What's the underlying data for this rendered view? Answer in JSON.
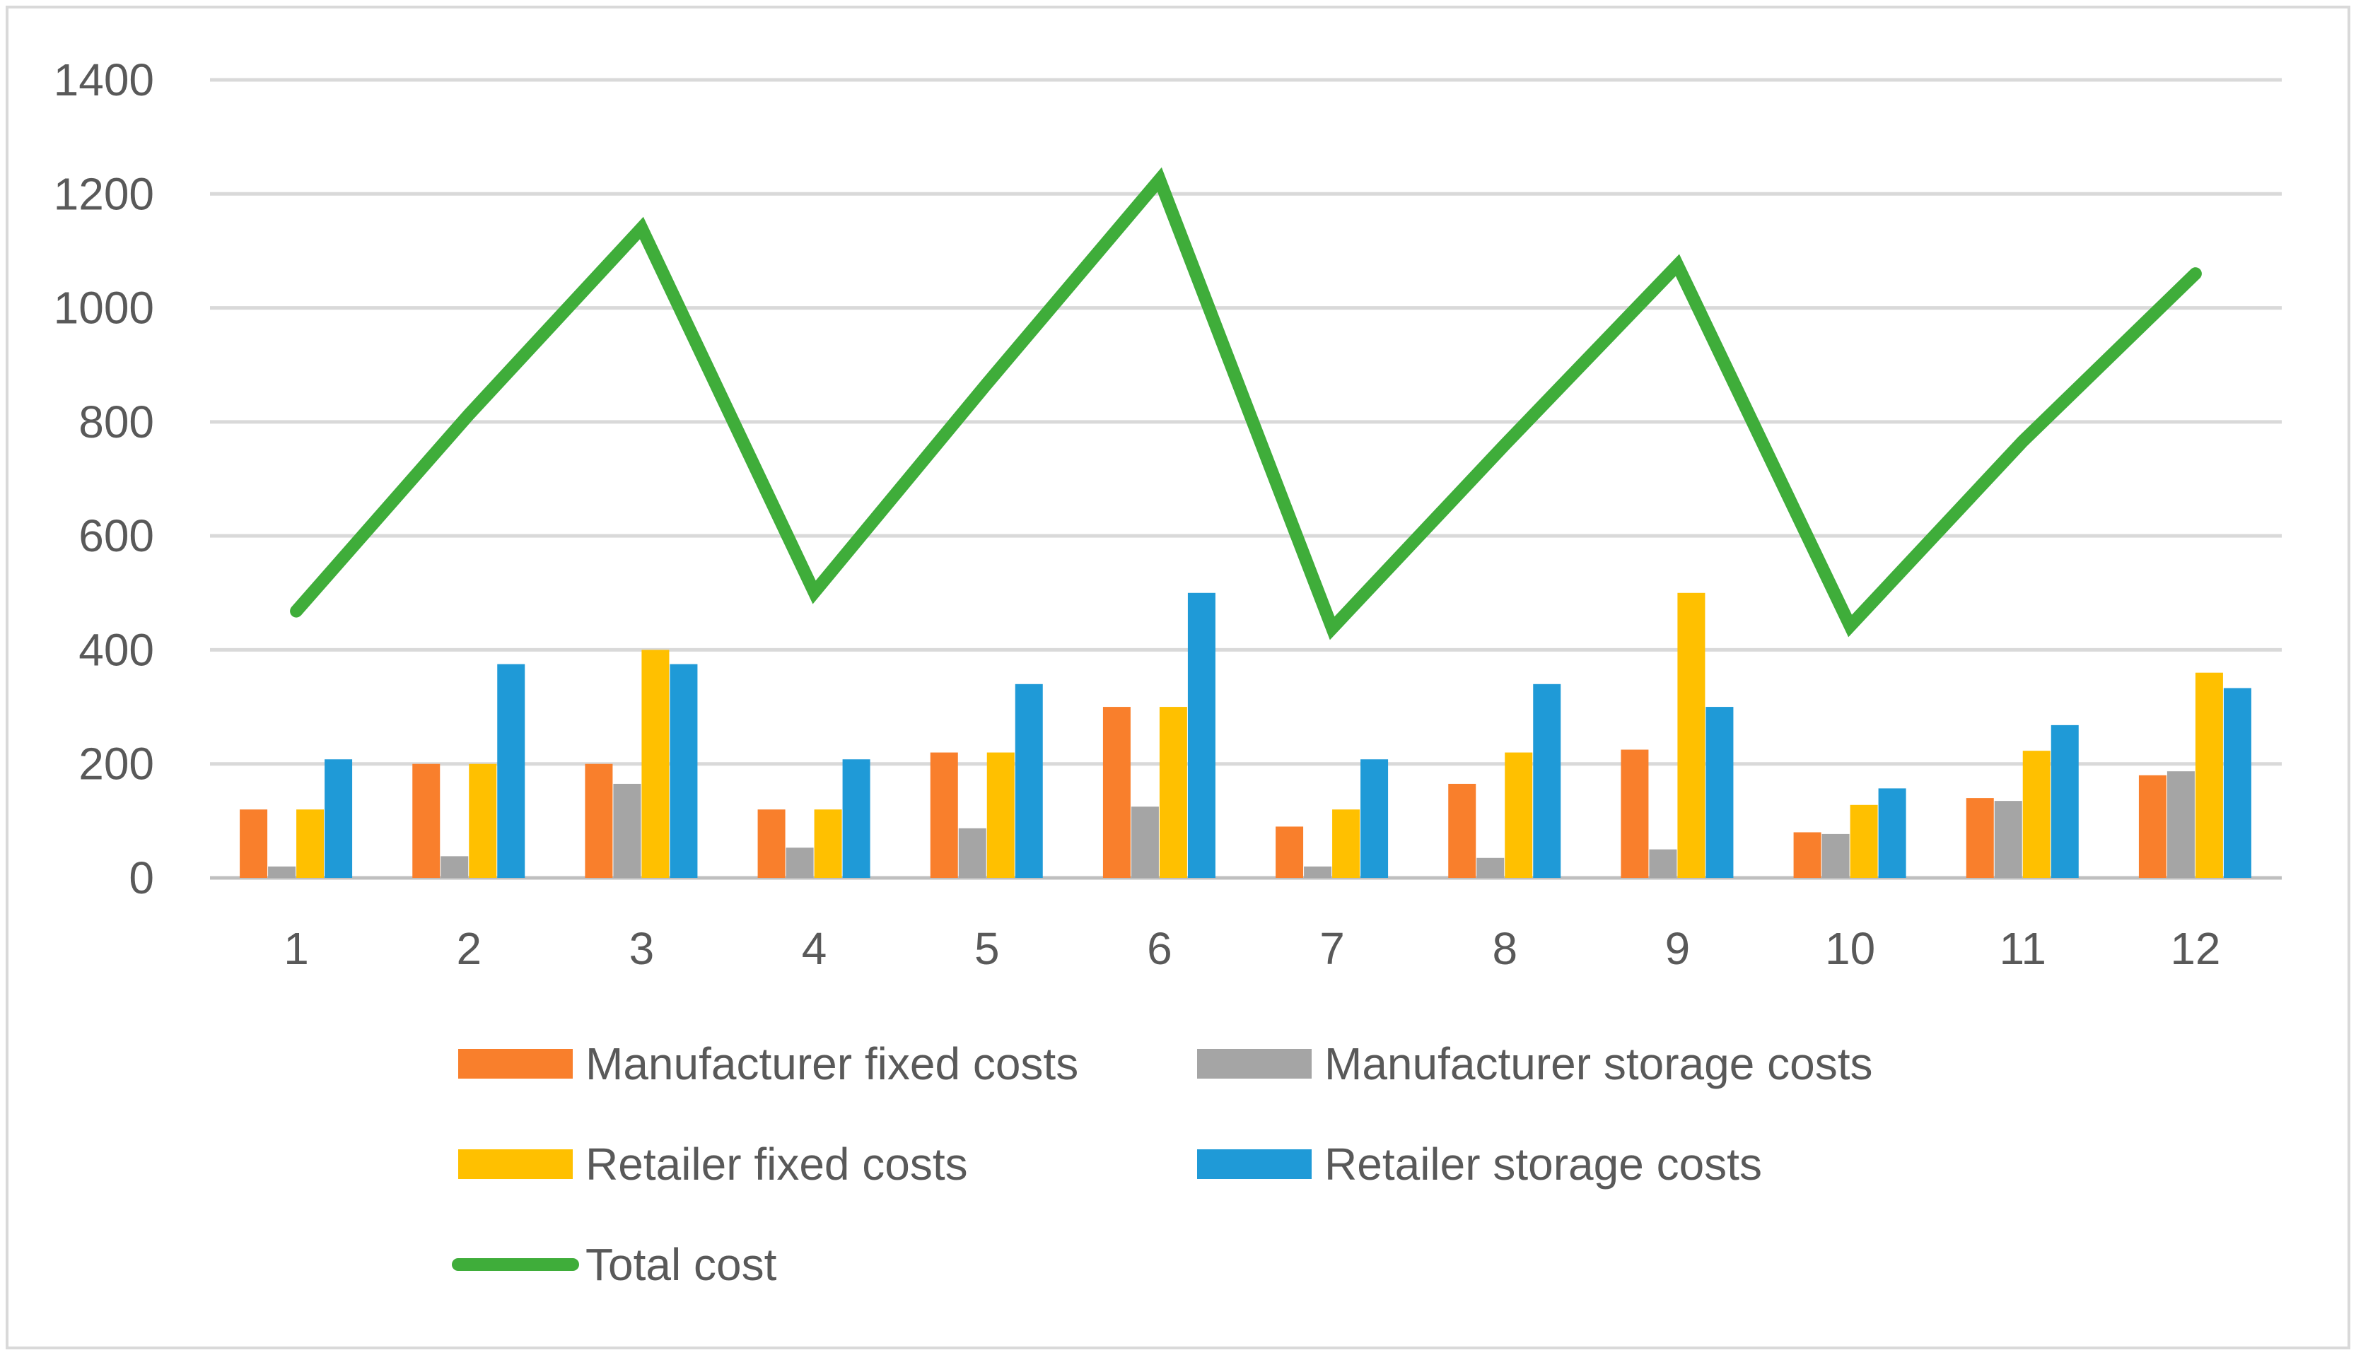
{
  "chart_data": {
    "type": "bar",
    "title": "",
    "xlabel": "",
    "ylabel": "",
    "categories": [
      "1",
      "2",
      "3",
      "4",
      "5",
      "6",
      "7",
      "8",
      "9",
      "10",
      "11",
      "12"
    ],
    "ylim": [
      0,
      1400
    ],
    "yticks": [
      0,
      200,
      400,
      600,
      800,
      1000,
      1200,
      1400
    ],
    "ytick_labels": [
      "0",
      "200",
      "400",
      "600",
      "800",
      "1000",
      "1200",
      "1400"
    ],
    "grid": true,
    "legend_position": "bottom",
    "series": [
      {
        "name": "Manufacturer fixed costs",
        "kind": "bar",
        "color": "#F97F2C",
        "values": [
          120,
          200,
          200,
          120,
          220,
          300,
          90,
          165,
          225,
          80,
          140,
          180
        ]
      },
      {
        "name": "Manufacturer storage costs",
        "kind": "bar",
        "color": "#A5A5A5",
        "values": [
          20,
          38,
          165,
          53,
          87,
          125,
          20,
          35,
          50,
          77,
          135,
          187
        ]
      },
      {
        "name": "Retailer fixed costs",
        "kind": "bar",
        "color": "#FFC000",
        "values": [
          120,
          200,
          400,
          120,
          220,
          300,
          120,
          220,
          500,
          128,
          223,
          360
        ]
      },
      {
        "name": "Retailer storage costs",
        "kind": "bar",
        "color": "#1F9AD7",
        "values": [
          208,
          375,
          375,
          208,
          340,
          500,
          208,
          340,
          300,
          157,
          268,
          333
        ]
      },
      {
        "name": "Total cost",
        "kind": "line",
        "color": "#3FAD3A",
        "values": [
          468,
          813,
          1140,
          501,
          867,
          1225,
          438,
          760,
          1075,
          442,
          766,
          1060
        ]
      }
    ]
  }
}
